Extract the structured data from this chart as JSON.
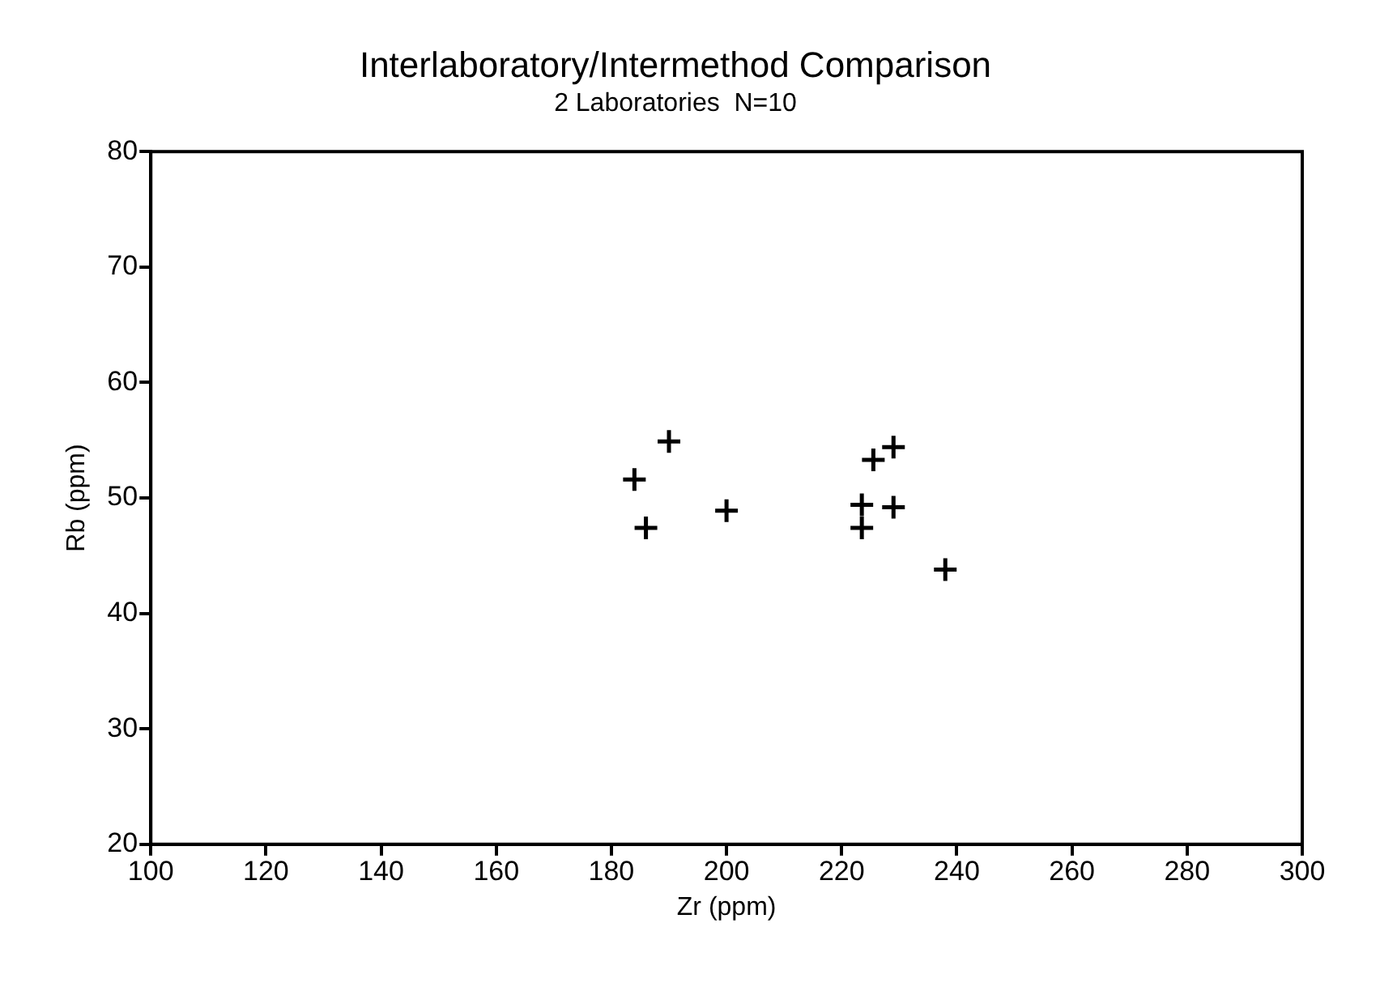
{
  "chart_data": {
    "type": "scatter",
    "title": "Interlaboratory/Intermethod Comparison",
    "subtitle": "2 Laboratories  N=10",
    "xlabel": "Zr (ppm)",
    "ylabel": "Rb (ppm)",
    "series": [
      {
        "color": "#000000",
        "x": [
          184,
          190,
          186,
          200,
          223.5,
          223.5,
          225.5,
          229,
          229,
          238
        ],
        "values": [
          51.6,
          54.9,
          47.4,
          48.9,
          49.4,
          47.4,
          53.3,
          54.4,
          49.2,
          43.8
        ]
      }
    ],
    "xlim": [
      100,
      300
    ],
    "xticks": [
      100,
      120,
      140,
      160,
      180,
      200,
      220,
      240,
      260,
      280,
      300
    ],
    "ylim": [
      20,
      80
    ],
    "yticks": [
      20,
      30,
      40,
      50,
      60,
      70,
      80
    ],
    "grid": false,
    "legend": false,
    "marker": "cross"
  }
}
